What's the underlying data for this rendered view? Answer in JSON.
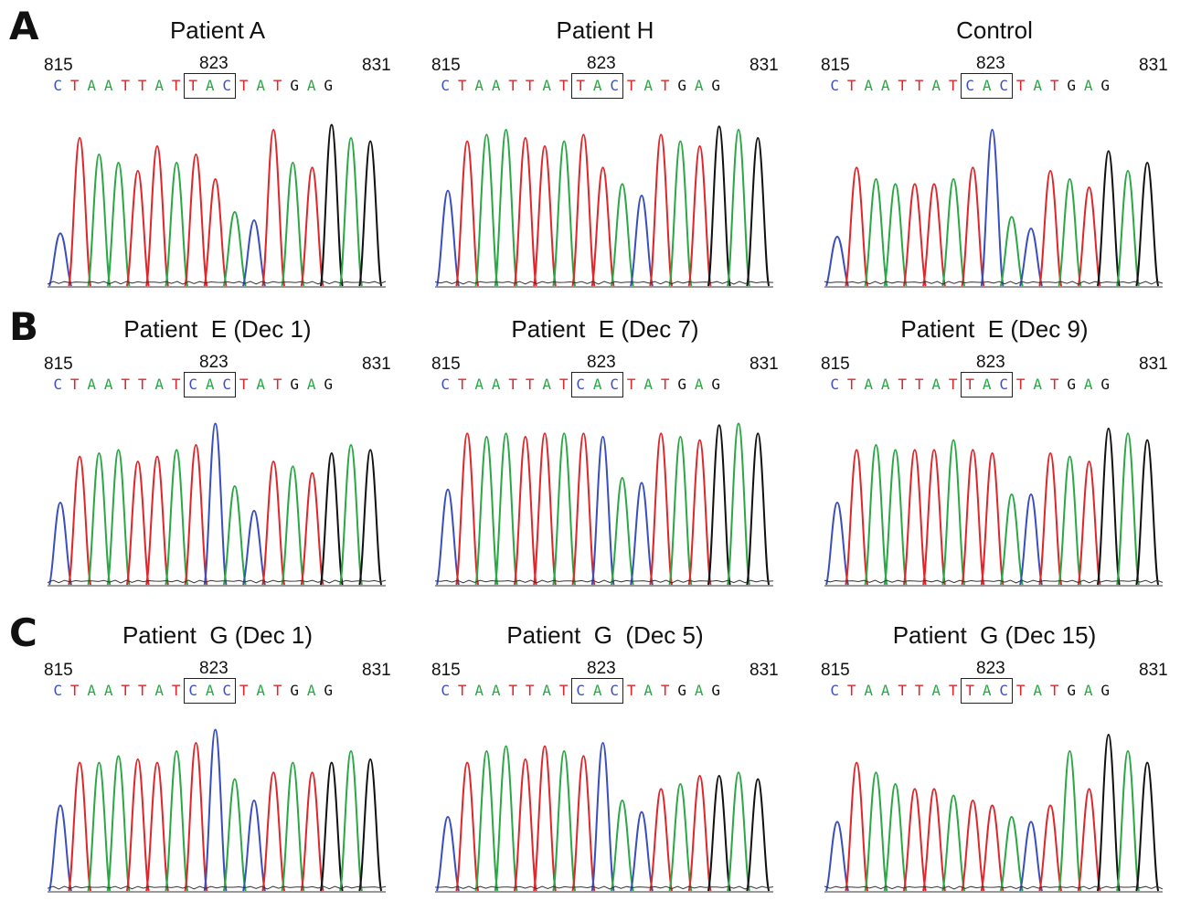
{
  "colors": {
    "A": "#2aa845",
    "C": "#3a4ec0",
    "G": "#111111",
    "T": "#e0262b"
  },
  "rows": [
    {
      "label": "A",
      "panels": [
        {
          "title": "Patient A",
          "pos_start": "815",
          "pos_mid": "823",
          "pos_end": "831",
          "sequence": "CTAATTATTACTATGAG",
          "codon": "TAC",
          "peak_heights": [
            0.32,
            0.9,
            0.8,
            0.75,
            0.7,
            0.85,
            0.75,
            0.8,
            0.65,
            0.45,
            0.4,
            0.95,
            0.75,
            0.72,
            0.98,
            0.9,
            0.88
          ]
        },
        {
          "title": "Patient H",
          "pos_start": "815",
          "pos_mid": "823",
          "pos_end": "831",
          "sequence": "CTAATTATTACTATGAG",
          "codon": "TAC",
          "peak_heights": [
            0.58,
            0.88,
            0.92,
            0.95,
            0.9,
            0.85,
            0.88,
            0.92,
            0.72,
            0.62,
            0.55,
            0.92,
            0.88,
            0.85,
            0.97,
            0.95,
            0.9
          ]
        },
        {
          "title": "Control",
          "pos_start": "815",
          "pos_mid": "823",
          "pos_end": "831",
          "sequence": "CTAATTATCACTATGAG",
          "codon": "CAC",
          "peak_heights": [
            0.3,
            0.72,
            0.65,
            0.62,
            0.62,
            0.62,
            0.65,
            0.72,
            0.95,
            0.42,
            0.35,
            0.7,
            0.65,
            0.6,
            0.82,
            0.7,
            0.75
          ]
        }
      ]
    },
    {
      "label": "B",
      "panels": [
        {
          "title": "Patient  E (Dec 1)",
          "pos_start": "815",
          "pos_mid": "823",
          "pos_end": "831",
          "sequence": "CTAATTATCACTATGAG",
          "codon": "CAC",
          "peak_heights": [
            0.5,
            0.78,
            0.8,
            0.82,
            0.75,
            0.78,
            0.82,
            0.85,
            0.98,
            0.6,
            0.45,
            0.75,
            0.72,
            0.68,
            0.8,
            0.85,
            0.82
          ]
        },
        {
          "title": "Patient  E (Dec 7)",
          "pos_start": "815",
          "pos_mid": "823",
          "pos_end": "831",
          "sequence": "CTAATTATCACTATGAG",
          "codon": "CAC",
          "peak_heights": [
            0.58,
            0.92,
            0.9,
            0.92,
            0.9,
            0.92,
            0.92,
            0.92,
            0.9,
            0.65,
            0.62,
            0.92,
            0.9,
            0.88,
            0.97,
            0.98,
            0.92
          ]
        },
        {
          "title": "Patient  E (Dec 9)",
          "pos_start": "815",
          "pos_mid": "823",
          "pos_end": "831",
          "sequence": "CTAATTATTACTATGAG",
          "codon": "TAC",
          "peak_heights": [
            0.5,
            0.82,
            0.85,
            0.82,
            0.82,
            0.82,
            0.88,
            0.82,
            0.8,
            0.55,
            0.55,
            0.8,
            0.78,
            0.75,
            0.95,
            0.92,
            0.88
          ]
        }
      ]
    },
    {
      "label": "C",
      "panels": [
        {
          "title": "Patient  G (Dec 1)",
          "pos_start": "815",
          "pos_mid": "823",
          "pos_end": "831",
          "sequence": "CTAATTATCACTATGAG",
          "codon": "CAC",
          "peak_heights": [
            0.52,
            0.78,
            0.78,
            0.82,
            0.8,
            0.78,
            0.85,
            0.9,
            0.98,
            0.68,
            0.55,
            0.72,
            0.78,
            0.72,
            0.78,
            0.85,
            0.8
          ]
        },
        {
          "title": "Patient  G  (Dec 5)",
          "pos_start": "815",
          "pos_mid": "823",
          "pos_end": "831",
          "sequence": "CTAATTATCACTATGAG",
          "codon": "CAC",
          "peak_heights": [
            0.45,
            0.78,
            0.85,
            0.88,
            0.8,
            0.88,
            0.85,
            0.82,
            0.9,
            0.55,
            0.48,
            0.62,
            0.65,
            0.7,
            0.7,
            0.72,
            0.68
          ]
        },
        {
          "title": "Patient  G (Dec 15)",
          "pos_start": "815",
          "pos_mid": "823",
          "pos_end": "831",
          "sequence": "CTAATTATTACTATGAG",
          "codon": "TAC",
          "peak_heights": [
            0.42,
            0.78,
            0.72,
            0.65,
            0.62,
            0.62,
            0.58,
            0.55,
            0.52,
            0.45,
            0.42,
            0.52,
            0.85,
            0.62,
            0.95,
            0.85,
            0.78
          ]
        }
      ]
    }
  ]
}
